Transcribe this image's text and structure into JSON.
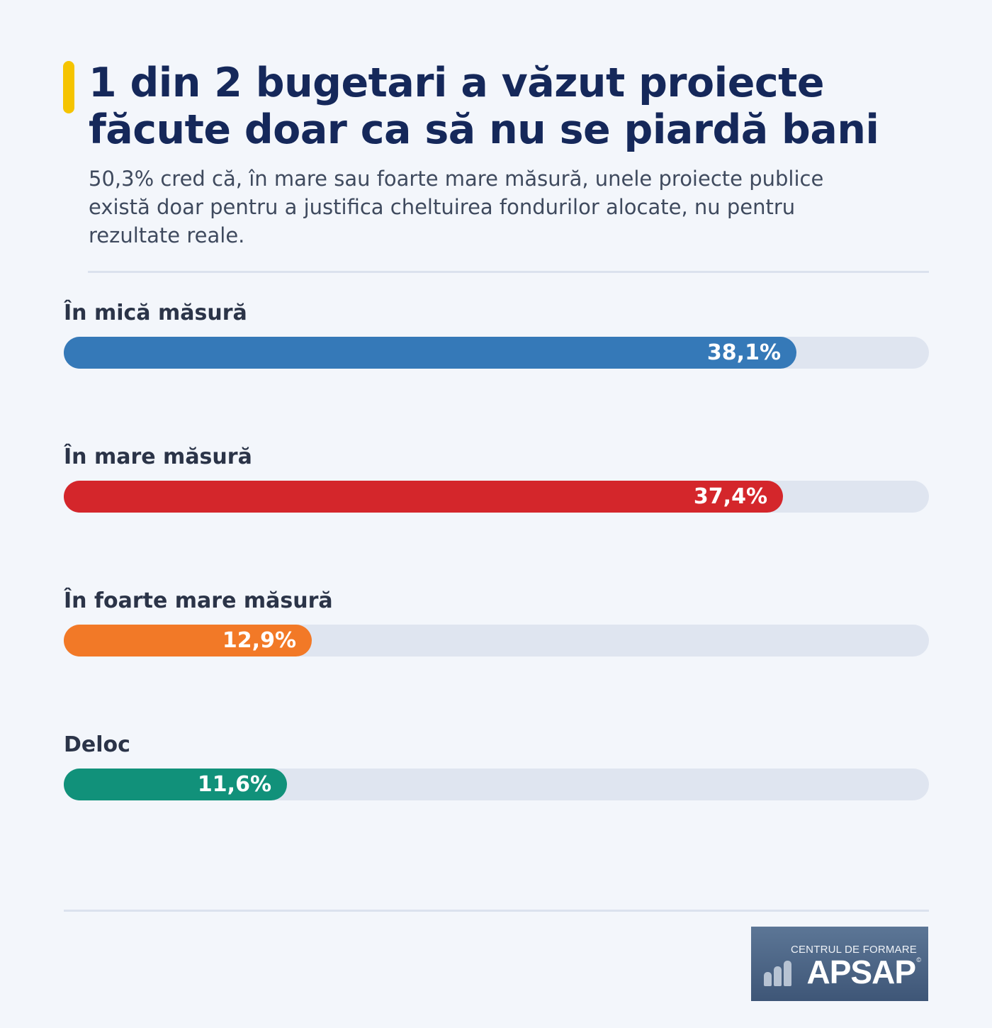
{
  "title": "1 din 2 bugetari a văzut proiecte\nfăcute doar ca să nu se piardă bani",
  "subtitle": "50,3% cred că, în mare sau foarte mare măsură, unele proiecte publice\nexistă doar pentru a justifica cheltuirea fondurilor alocate, nu pentru\nrezultate reale.",
  "accent_color": "#f5c400",
  "chart_data": {
    "type": "bar",
    "orientation": "horizontal",
    "unit": "%",
    "xlim": [
      0,
      45
    ],
    "categories": [
      "În mică măsură",
      "În mare măsură",
      "În foarte mare măsură",
      "Deloc"
    ],
    "values": [
      38.1,
      37.4,
      12.9,
      11.6
    ],
    "value_labels": [
      "38,1%",
      "37,4%",
      "12,9%",
      "11,6%"
    ],
    "colors": [
      "#3579b8",
      "#d4262b",
      "#f27927",
      "#11917a"
    ],
    "track_color": "#dfe5f0"
  },
  "logo": {
    "line1": "CENTRUL DE FORMARE",
    "line2": "APSAP",
    "mark": "©",
    "icon": "bar-chart-icon"
  }
}
